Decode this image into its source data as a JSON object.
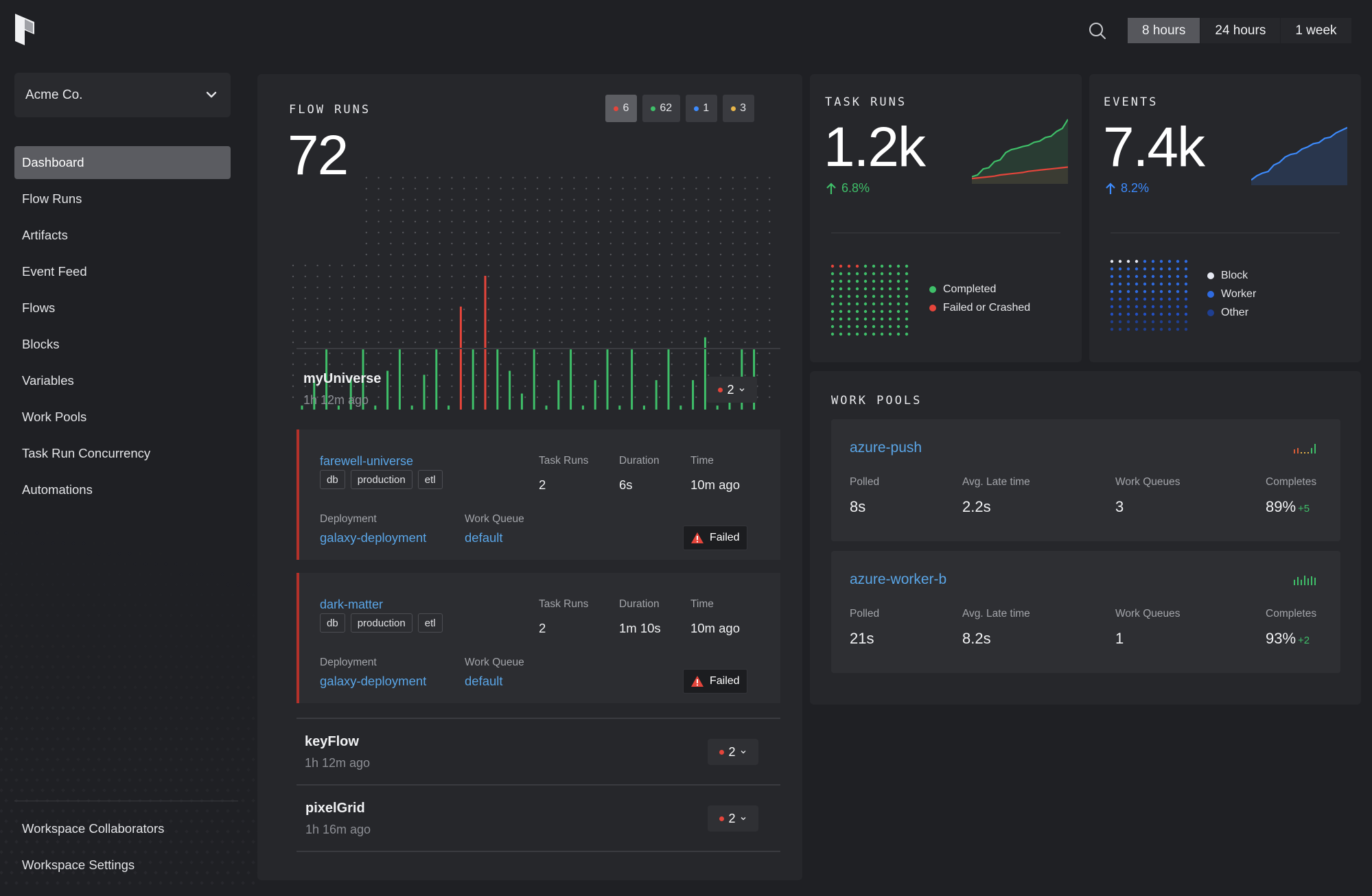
{
  "topbar": {
    "range_options": [
      "8 hours",
      "24 hours",
      "1 week"
    ],
    "range_selected": "8 hours",
    "icons": {
      "logo": "prefect-logo-icon",
      "search": "search-icon"
    }
  },
  "sidebar": {
    "workspace": "Acme Co.",
    "items": [
      "Dashboard",
      "Flow Runs",
      "Artifacts",
      "Event Feed",
      "Flows",
      "Blocks",
      "Variables",
      "Work Pools",
      "Task Run Concurrency",
      "Automations"
    ],
    "active": "Dashboard",
    "bottom_items": [
      "Workspace Collaborators",
      "Workspace Settings"
    ]
  },
  "flow_runs": {
    "title": "FLOW RUNS",
    "total": "72",
    "state_badges": [
      {
        "count": "6",
        "color": "#e5453b",
        "state": "failed"
      },
      {
        "count": "62",
        "color": "#3fbf69",
        "state": "completed"
      },
      {
        "count": "1",
        "color": "#3d8bfd",
        "state": "running"
      },
      {
        "count": "3",
        "color": "#e8b64a",
        "state": "scheduled"
      }
    ],
    "histogram": [
      {
        "v": 0.03,
        "c": "g"
      },
      {
        "v": 0.22,
        "c": "g"
      },
      {
        "v": 0.45,
        "c": "g"
      },
      {
        "v": 0.03,
        "c": "g"
      },
      {
        "v": 0.24,
        "c": "g"
      },
      {
        "v": 0.45,
        "c": "g"
      },
      {
        "v": 0.03,
        "c": "g"
      },
      {
        "v": 0.29,
        "c": "g"
      },
      {
        "v": 0.45,
        "c": "g"
      },
      {
        "v": 0.03,
        "c": "g"
      },
      {
        "v": 0.26,
        "c": "g"
      },
      {
        "v": 0.45,
        "c": "g"
      },
      {
        "v": 0.03,
        "c": "g"
      },
      {
        "v": 0.77,
        "c": "r"
      },
      {
        "v": 0.45,
        "c": "g"
      },
      {
        "v": 1.0,
        "c": "r"
      },
      {
        "v": 0.45,
        "c": "g"
      },
      {
        "v": 0.29,
        "c": "g"
      },
      {
        "v": 0.12,
        "c": "g"
      },
      {
        "v": 0.45,
        "c": "g"
      },
      {
        "v": 0.03,
        "c": "g"
      },
      {
        "v": 0.22,
        "c": "g"
      },
      {
        "v": 0.45,
        "c": "g"
      },
      {
        "v": 0.03,
        "c": "g"
      },
      {
        "v": 0.22,
        "c": "g"
      },
      {
        "v": 0.45,
        "c": "g"
      },
      {
        "v": 0.03,
        "c": "g"
      },
      {
        "v": 0.45,
        "c": "g"
      },
      {
        "v": 0.03,
        "c": "g"
      },
      {
        "v": 0.22,
        "c": "g"
      },
      {
        "v": 0.45,
        "c": "g"
      },
      {
        "v": 0.03,
        "c": "g"
      },
      {
        "v": 0.22,
        "c": "g"
      },
      {
        "v": 0.54,
        "c": "g"
      },
      {
        "v": 0.03,
        "c": "g"
      },
      {
        "v": 0.22,
        "c": "g"
      },
      {
        "v": 0.45,
        "c": "g"
      },
      {
        "v": 0.45,
        "c": "g"
      }
    ],
    "flows": [
      {
        "name": "myUniverse",
        "ago": "1h 12m ago",
        "count": "2",
        "expanded": true
      },
      {
        "name": "keyFlow",
        "ago": "1h 12m ago",
        "count": "2",
        "expanded": false
      },
      {
        "name": "pixelGrid",
        "ago": "1h 16m ago",
        "count": "2",
        "expanded": false
      }
    ],
    "runs": [
      {
        "name": "farewell-universe",
        "tags": [
          "db",
          "production",
          "etl"
        ],
        "task_runs_label": "Task Runs",
        "task_runs": "2",
        "duration_label": "Duration",
        "duration": "6s",
        "time_label": "Time",
        "time": "10m ago",
        "deployment_label": "Deployment",
        "deployment": "galaxy-deployment",
        "queue_label": "Work Queue",
        "queue": "default",
        "state": "Failed"
      },
      {
        "name": "dark-matter",
        "tags": [
          "db",
          "production",
          "etl"
        ],
        "task_runs_label": "Task Runs",
        "task_runs": "2",
        "duration_label": "Duration",
        "duration": "1m 10s",
        "time_label": "Time",
        "time": "10m ago",
        "deployment_label": "Deployment",
        "deployment": "galaxy-deployment",
        "queue_label": "Work Queue",
        "queue": "default",
        "state": "Failed"
      }
    ]
  },
  "task_runs": {
    "title": "TASK RUNS",
    "total": "1.2k",
    "trend": "6.8%",
    "trend_color": "#3fbf69",
    "spark_completed": [
      0.05,
      0.08,
      0.18,
      0.2,
      0.3,
      0.33,
      0.45,
      0.5,
      0.52,
      0.55,
      0.57,
      0.62,
      0.64,
      0.7,
      0.72,
      0.8,
      0.85,
      1.0
    ],
    "spark_failed": [
      0.02,
      0.03,
      0.04,
      0.05,
      0.06,
      0.08,
      0.09,
      0.1,
      0.11,
      0.12,
      0.14,
      0.15,
      0.16,
      0.17,
      0.18,
      0.19,
      0.2,
      0.21
    ],
    "legend": [
      {
        "label": "Completed",
        "color": "#3fbf69"
      },
      {
        "label": "Failed or Crashed",
        "color": "#e5453b"
      }
    ]
  },
  "events": {
    "title": "EVENTS",
    "total": "7.4k",
    "trend": "8.2%",
    "trend_color": "#3d8bfd",
    "spark": [
      0.02,
      0.1,
      0.15,
      0.18,
      0.3,
      0.35,
      0.45,
      0.5,
      0.52,
      0.6,
      0.64,
      0.7,
      0.72,
      0.8,
      0.82,
      0.9,
      0.95,
      1.0
    ],
    "legend": [
      {
        "label": "Block",
        "color": "#e6e9f2"
      },
      {
        "label": "Worker",
        "color": "#2f6be0"
      },
      {
        "label": "Other",
        "color": "#1f3f91"
      }
    ]
  },
  "work_pools": {
    "title": "WORK POOLS",
    "labels": {
      "polled": "Polled",
      "late": "Avg. Late time",
      "queues": "Work Queues",
      "completes": "Completes"
    },
    "pools": [
      {
        "name": "azure-push",
        "polled": "8s",
        "late": "2.2s",
        "queues": "3",
        "completes": "89%",
        "delta": "+5"
      },
      {
        "name": "azure-worker-b",
        "polled": "21s",
        "late": "8.2s",
        "queues": "1",
        "completes": "93%",
        "delta": "+2"
      }
    ]
  }
}
